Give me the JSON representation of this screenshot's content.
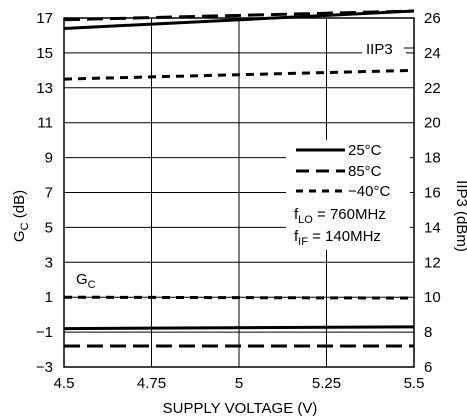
{
  "chart_data": {
    "type": "line",
    "xlabel": "SUPPLY VOLTAGE (V)",
    "ylabel_left": "Gᴄ (dB)",
    "ylabel_left_base": "G",
    "ylabel_left_sub": "C",
    "ylabel_left_unit": " (dB)",
    "ylabel_right": "IIP3 (dBm)",
    "xlim": [
      4.5,
      5.5
    ],
    "ylim_left": [
      -3,
      17
    ],
    "ylim_right": [
      6,
      26
    ],
    "xticks": [
      "4.5",
      "4.75",
      "5",
      "5.25",
      "5.5"
    ],
    "xtick_values": [
      4.5,
      4.75,
      5,
      5.25,
      5.5
    ],
    "yticks_left": [
      "17",
      "15",
      "13",
      "11",
      "9",
      "7",
      "5",
      "3",
      "1",
      "−1",
      "−3"
    ],
    "ytick_left_values": [
      17,
      15,
      13,
      11,
      9,
      7,
      5,
      3,
      1,
      -1,
      -3
    ],
    "yticks_right": [
      "26",
      "24",
      "22",
      "20",
      "18",
      "16",
      "14",
      "12",
      "10",
      "8",
      "6"
    ],
    "ytick_right_values": [
      26,
      24,
      22,
      20,
      18,
      16,
      14,
      12,
      10,
      8,
      6
    ],
    "grid": true,
    "legend": {
      "placement": "right-center",
      "entries": [
        {
          "label": "25°C",
          "style": "solid"
        },
        {
          "label": "85°C",
          "style": "longdash"
        },
        {
          "label": "−40°C",
          "style": "shortdash"
        }
      ]
    },
    "conditions": [
      {
        "base": "f",
        "sub": "LO",
        "text": " = 760MHz"
      },
      {
        "base": "f",
        "sub": "IF",
        "text": " = 140MHz"
      }
    ],
    "annotations": {
      "iip3": "IIP3",
      "gc_base": "G",
      "gc_sub": "C"
    },
    "series": [
      {
        "axis": "right",
        "style": "solid",
        "x": [
          4.5,
          5.5
        ],
        "y": [
          25.4,
          26.4
        ]
      },
      {
        "axis": "right",
        "style": "longdash",
        "x": [
          4.5,
          5.5
        ],
        "y": [
          25.9,
          26.4
        ]
      },
      {
        "axis": "right",
        "style": "shortdash",
        "x": [
          4.5,
          5.5
        ],
        "y": [
          22.5,
          23.0
        ]
      },
      {
        "axis": "left",
        "style": "solid",
        "x": [
          4.5,
          5.5
        ],
        "y": [
          -0.8,
          -0.7
        ]
      },
      {
        "axis": "left",
        "style": "longdash",
        "x": [
          4.5,
          5.5
        ],
        "y": [
          -1.8,
          -1.8
        ]
      },
      {
        "axis": "left",
        "style": "shortdash",
        "x": [
          4.5,
          5.5
        ],
        "y": [
          1.0,
          0.95
        ]
      }
    ]
  }
}
